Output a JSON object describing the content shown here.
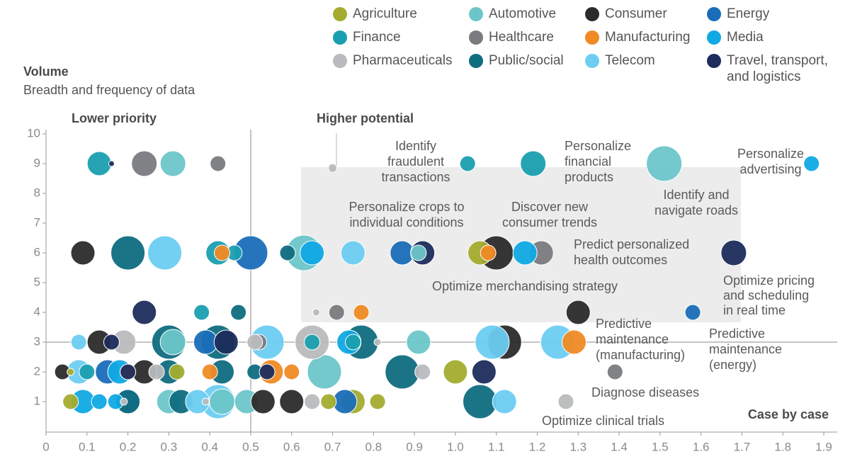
{
  "chart_data": {
    "type": "bubble",
    "y_label": "Volume",
    "y_sublabel": "Breadth and frequency of data",
    "quadrant_labels": [
      "Lower priority",
      "Higher potential",
      "Case by case"
    ],
    "annotations": [
      [
        "Identify",
        "fraudulent",
        "transactions"
      ],
      [
        "Personalize",
        "financial",
        "products"
      ],
      [
        "Personalize",
        "advertising"
      ],
      [
        "Identify and",
        "navigate roads"
      ],
      [
        "Personalize crops to",
        "individual conditions"
      ],
      [
        "Discover new",
        "consumer trends"
      ],
      [
        "Predict personalized",
        "health outcomes"
      ],
      [
        "Optimize merchandising strategy"
      ],
      [
        "Optimize pricing",
        "and scheduling",
        "in real time"
      ],
      [
        "Predictive",
        "maintenance",
        "(manufacturing)"
      ],
      [
        "Predictive",
        "maintenance",
        "(energy)"
      ],
      [
        "Diagnose diseases"
      ],
      [
        "Optimize clinical trials"
      ]
    ],
    "xlim": [
      0,
      1.9
    ],
    "ylim": [
      0,
      10
    ],
    "xticks": [
      0,
      0.1,
      0.2,
      0.3,
      0.4,
      0.5,
      0.6,
      0.7,
      0.8,
      0.9,
      {
        "value": 1,
        "label": "1.0"
      },
      1.1,
      1.2,
      1.3,
      1.4,
      1.5,
      1.6,
      1.7,
      1.8,
      1.9
    ],
    "yticks": [
      1,
      2,
      3,
      4,
      5,
      6,
      7,
      8,
      9,
      10
    ],
    "series": [
      {
        "name": "Agriculture",
        "color": "#a3ac2f",
        "x": [
          1.06,
          0.32,
          1.0,
          0.06,
          0.06,
          0.69,
          0.75,
          0.81
        ],
        "values": [
          6,
          2,
          2,
          2,
          1,
          1,
          1,
          1
        ],
        "sizes": [
          17,
          11,
          17,
          5,
          11,
          11,
          17,
          11
        ]
      },
      {
        "name": "Automotive",
        "color": "#6cc6c9",
        "x": [
          0.31,
          1.51,
          0.63,
          0.31,
          0.91,
          0.91,
          0.68,
          0.3,
          0.43,
          0.49
        ],
        "values": [
          9,
          9,
          6,
          3,
          3,
          6,
          2,
          1,
          1,
          1
        ],
        "sizes": [
          18,
          25,
          25,
          18,
          17,
          11,
          24,
          17,
          18,
          17
        ]
      },
      {
        "name": "Consumer",
        "color": "#2b2b2b",
        "x": [
          0.09,
          1.1,
          1.3,
          0.13,
          1.12,
          0.04,
          0.24,
          0.53,
          0.6
        ],
        "values": [
          6,
          6,
          4,
          3,
          3,
          2,
          2,
          1,
          1
        ],
        "sizes": [
          17,
          24,
          17,
          17,
          24,
          11,
          17,
          17,
          17
        ]
      },
      {
        "name": "Energy",
        "color": "#1a6eb8",
        "x": [
          0.5,
          0.87,
          1.58,
          0.39,
          0.15,
          0.2,
          0.73
        ],
        "values": [
          6,
          6,
          4,
          3,
          2,
          1,
          1
        ],
        "sizes": [
          24,
          17,
          11,
          17,
          17,
          17,
          17
        ]
      },
      {
        "name": "Finance",
        "color": "#1a9fb0",
        "x": [
          0.13,
          1.03,
          1.19,
          0.42,
          0.46,
          0.38,
          0.65,
          0.75,
          0.1
        ],
        "values": [
          9,
          9,
          9,
          6,
          6,
          4,
          3,
          3,
          2
        ],
        "sizes": [
          17,
          11,
          18,
          17,
          11,
          11,
          11,
          11,
          11
        ]
      },
      {
        "name": "Healthcare",
        "color": "#7a7b7e",
        "x": [
          0.24,
          0.42,
          1.21,
          0.71,
          0.52,
          1.39
        ],
        "values": [
          9,
          9,
          6,
          4,
          3,
          2
        ],
        "sizes": [
          18,
          11,
          17,
          11,
          11,
          11
        ]
      },
      {
        "name": "Manufacturing",
        "color": "#f08a24",
        "x": [
          0.43,
          1.08,
          0.77,
          1.29,
          0.2,
          0.4,
          0.55,
          0.6
        ],
        "values": [
          6,
          6,
          4,
          3,
          2,
          2,
          2,
          2
        ],
        "sizes": [
          11,
          11,
          11,
          17,
          11,
          11,
          17,
          11
        ]
      },
      {
        "name": "Media",
        "color": "#10a9e4",
        "x": [
          1.87,
          0.65,
          1.17,
          0.74,
          0.18,
          0.09,
          0.13,
          0.17
        ],
        "values": [
          9,
          6,
          6,
          3,
          2,
          1,
          1,
          1
        ],
        "sizes": [
          11,
          17,
          17,
          17,
          17,
          17,
          11,
          11
        ]
      },
      {
        "name": "Pharmaceuticals",
        "color": "#b9babd",
        "x": [
          0.7,
          0.66,
          0.19,
          0.51,
          0.65,
          0.81,
          0.27,
          0.92,
          0.19,
          0.39,
          0.65,
          1.27
        ],
        "values": [
          8.85,
          4,
          3,
          3,
          3,
          3,
          2,
          2,
          1,
          1,
          1,
          1
        ],
        "sizes": [
          6,
          5,
          17,
          11,
          24,
          5,
          11,
          11,
          5,
          5,
          11,
          11
        ]
      },
      {
        "name": "Public/social",
        "color": "#0f6d80",
        "x": [
          0.2,
          0.59,
          0.47,
          0.3,
          0.42,
          0.77,
          0.3,
          0.43,
          0.51,
          0.87,
          0.2,
          0.33,
          1.06
        ],
        "values": [
          6,
          6,
          4,
          3,
          3,
          3,
          2,
          2,
          2,
          2,
          1,
          1,
          1
        ],
        "sizes": [
          24,
          11,
          11,
          24,
          24,
          24,
          17,
          17,
          11,
          24,
          17,
          17,
          24
        ]
      },
      {
        "name": "Telecom",
        "color": "#6dcdf2",
        "x": [
          0.29,
          0.75,
          0.08,
          0.54,
          1.09,
          1.25,
          0.08,
          0.37,
          0.42,
          1.12
        ],
        "values": [
          6,
          6,
          3,
          3,
          3,
          3,
          2,
          1,
          1,
          1
        ],
        "sizes": [
          24,
          17,
          11,
          24,
          24,
          24,
          17,
          17,
          24,
          17
        ]
      },
      {
        "name": "Travel, transport, and logistics",
        "color": "#1c2c5c",
        "x": [
          0.16,
          0.92,
          1.68,
          0.24,
          0.16,
          0.44,
          0.2,
          0.54,
          1.07
        ],
        "values": [
          9,
          6,
          6,
          4,
          3,
          3,
          2,
          2,
          2
        ],
        "sizes": [
          4,
          17,
          18,
          17,
          11,
          17,
          11,
          11,
          17
        ]
      }
    ]
  }
}
